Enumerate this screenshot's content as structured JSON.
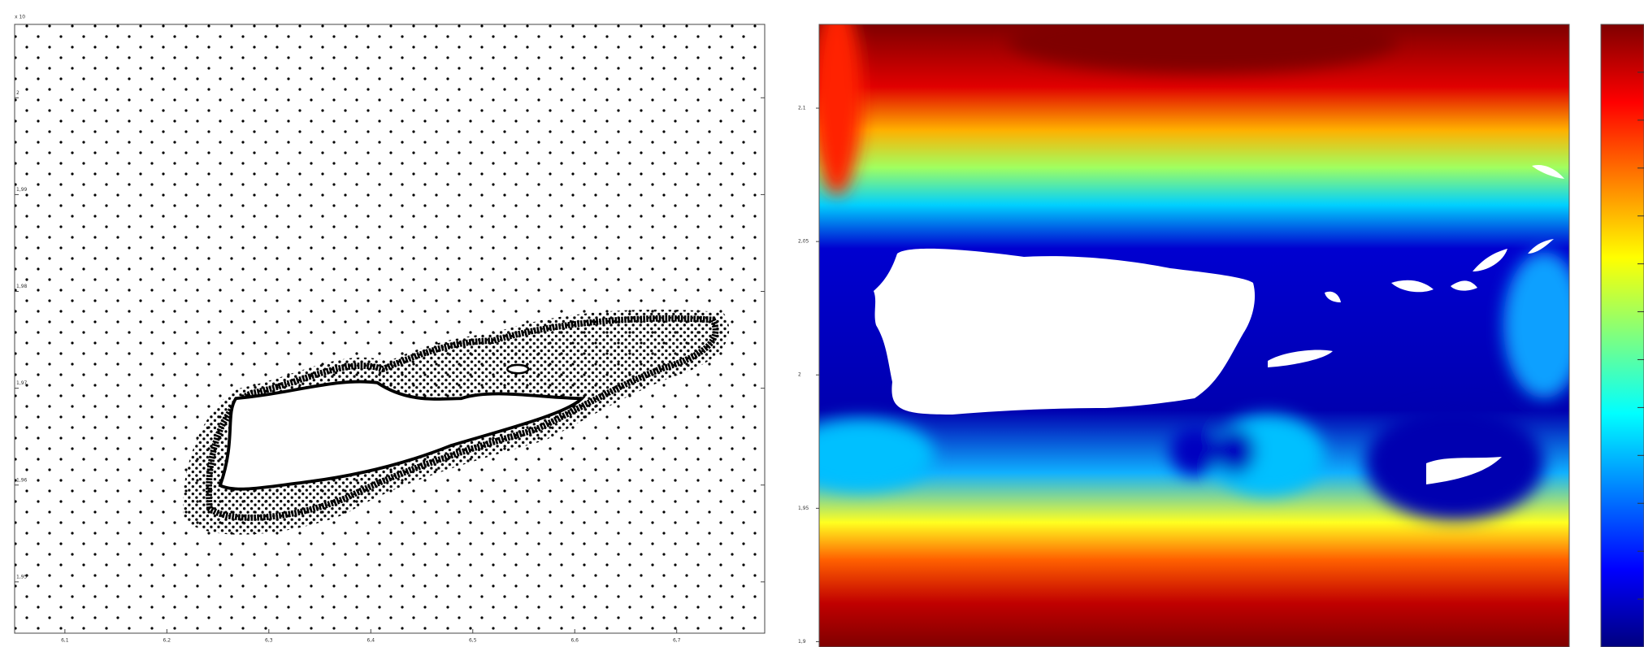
{
  "chart_data": [
    {
      "type": "scatter",
      "multiplier": "x 10",
      "xlim": [
        6.0507,
        6.7863
      ],
      "xticks": [
        {
          "value": 6.1,
          "label": "6,1"
        },
        {
          "value": 6.2,
          "label": "6,2"
        },
        {
          "value": 6.3,
          "label": "6,3"
        },
        {
          "value": 6.4,
          "label": "6,4"
        },
        {
          "value": 6.5,
          "label": "6,5"
        },
        {
          "value": 6.6,
          "label": "6,6"
        },
        {
          "value": 6.7,
          "label": "6,7"
        }
      ],
      "ylim": [
        1.9447,
        2.00758
      ],
      "yticks": [
        2,
        {
          "value": 1.99,
          "label": "1,99"
        },
        {
          "value": 1.98,
          "label": "1,98"
        },
        {
          "value": 1.97,
          "label": "1,97"
        },
        {
          "value": 1.96,
          "label": "1,96"
        },
        {
          "value": 1.95,
          "label": "1,95"
        }
      ]
    },
    {
      "type": "heatmap",
      "ylim": [
        1.898,
        2.1314
      ],
      "yticks": [
        {
          "value": 2.1,
          "label": "2,1"
        },
        {
          "value": 2.05,
          "label": "2,05"
        },
        2,
        {
          "value": 1.95,
          "label": "1,95"
        },
        {
          "value": 1.9,
          "label": "1,9"
        }
      ],
      "colormap": [
        "#00007f",
        "#0000ff",
        "#007fff",
        "#00ffff",
        "#7fff7f",
        "#ffff00",
        "#ff7f00",
        "#ff0000",
        "#7f0000"
      ]
    }
  ]
}
